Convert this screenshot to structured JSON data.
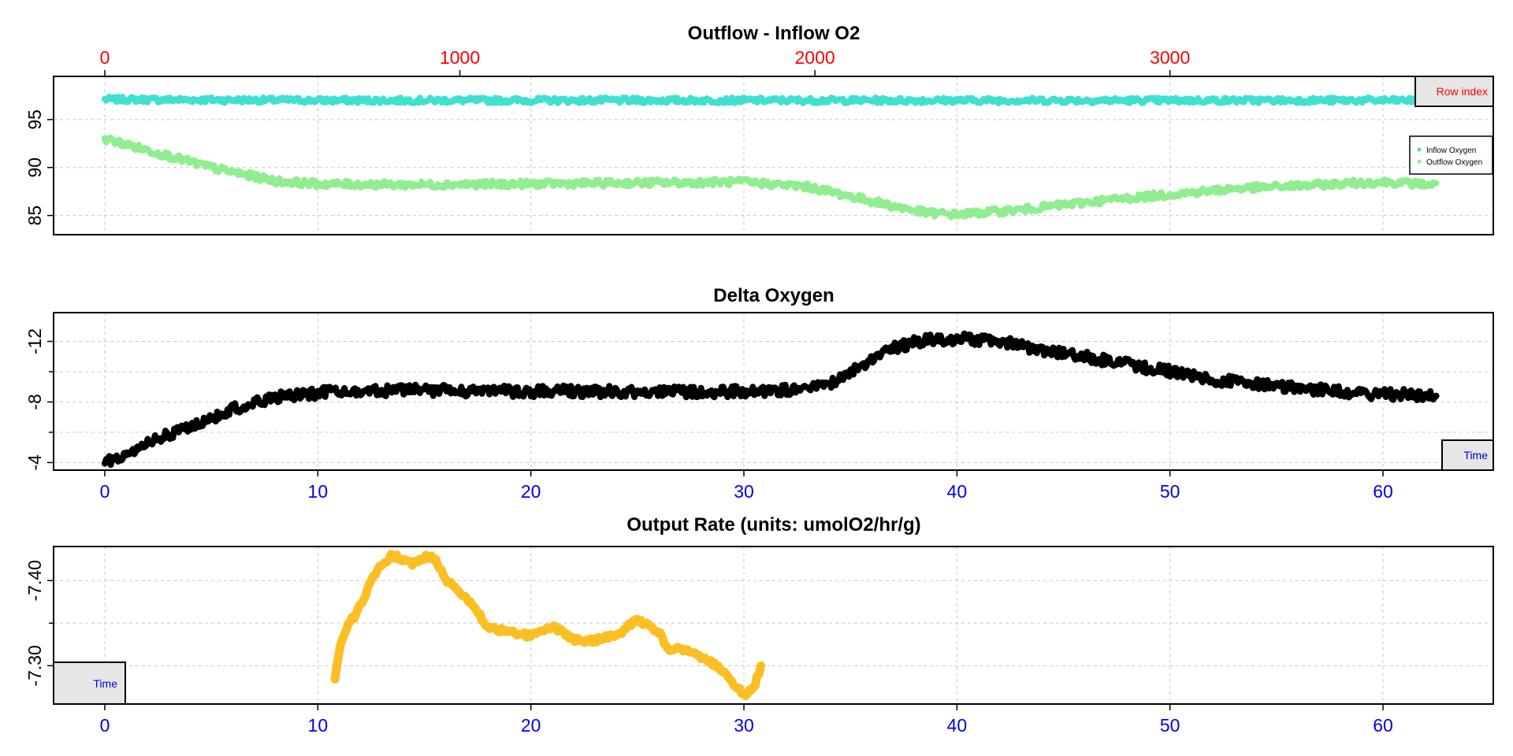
{
  "colors": {
    "inflow": "#40E0D0",
    "outflow": "#90EE90",
    "delta": "#000000",
    "rate": "#FBBF24",
    "row_axis": "#FF0000",
    "time_axis": "#0000EE",
    "box_fill": "#E6E6E6"
  },
  "chart_data": [
    {
      "type": "line",
      "title": "Outflow - Inflow O2",
      "x_top_label_box": "Row index",
      "x_top": {
        "ticks": [
          0,
          1000,
          2000,
          3000
        ],
        "range": [
          0,
          3750
        ]
      },
      "xlim": [
        0,
        62.5
      ],
      "ylim": [
        83,
        99.5
      ],
      "y_ticks": [
        85,
        90,
        95
      ],
      "grid": true,
      "legend_placement": "right",
      "series": [
        {
          "name": "Inflow Oxygen",
          "x": [
            0,
            10,
            20,
            30,
            40,
            50,
            62.5
          ],
          "values": [
            97.1,
            97.0,
            97.0,
            97.0,
            97.0,
            97.0,
            97.0
          ]
        },
        {
          "name": "Outflow Oxygen",
          "x": [
            0,
            2,
            5,
            8,
            10,
            14,
            20,
            30,
            33,
            35,
            37,
            38.5,
            40,
            43,
            47,
            50,
            53,
            57,
            60,
            62.5
          ],
          "values": [
            93.0,
            91.8,
            90.0,
            88.6,
            88.3,
            88.2,
            88.3,
            88.5,
            88.0,
            87.0,
            86.0,
            85.3,
            85.1,
            85.6,
            86.6,
            87.2,
            87.8,
            88.2,
            88.5,
            88.2
          ]
        }
      ]
    },
    {
      "type": "line",
      "title": "Delta Oxygen",
      "x_label_box": "Time",
      "xlim": [
        0,
        62.5
      ],
      "ylim": [
        -3.5,
        -13.9
      ],
      "y_ticks": [
        -12,
        -8,
        -4
      ],
      "x_ticks": [
        0,
        10,
        20,
        30,
        40,
        50,
        60
      ],
      "grid": true,
      "series": [
        {
          "name": "",
          "x": [
            0,
            2,
            4,
            6,
            8,
            10,
            14,
            20,
            25,
            30,
            33,
            34,
            35,
            36,
            37,
            38,
            40,
            42,
            45,
            48,
            50,
            52,
            55,
            58,
            60,
            62.5
          ],
          "values": [
            -4.0,
            -5.3,
            -6.3,
            -7.5,
            -8.3,
            -8.6,
            -8.8,
            -8.7,
            -8.7,
            -8.7,
            -8.8,
            -9.2,
            -10.0,
            -10.8,
            -11.5,
            -12.0,
            -12.2,
            -12.0,
            -11.2,
            -10.5,
            -10.0,
            -9.5,
            -9.0,
            -8.7,
            -8.5,
            -8.5
          ]
        }
      ]
    },
    {
      "type": "line",
      "title": "Output Rate (units: umolO2/hr/g)",
      "x_label_box": "Time",
      "xlim": [
        0,
        62.5
      ],
      "ylim": [
        -7.255,
        -7.44
      ],
      "y_ticks": [
        -7.4,
        -7.3
      ],
      "y_tick_labels": [
        "-7.40",
        "-7.30"
      ],
      "x_ticks": [
        0,
        10,
        20,
        30,
        40,
        50,
        60
      ],
      "grid": true,
      "series": [
        {
          "name": "",
          "x": [
            10.8,
            11.1,
            11.5,
            12.0,
            12.5,
            13.0,
            13.5,
            14.0,
            14.5,
            15.0,
            15.5,
            16.0,
            16.5,
            17.0,
            18.0,
            19.0,
            20.0,
            21.0,
            21.5,
            22.0,
            23.0,
            24.0,
            25.0,
            26.0,
            26.5,
            27.0,
            28.0,
            29.0,
            29.5,
            30.0,
            30.5,
            30.8
          ],
          "values": [
            -7.285,
            -7.33,
            -7.35,
            -7.37,
            -7.4,
            -7.42,
            -7.43,
            -7.425,
            -7.42,
            -7.428,
            -7.425,
            -7.4,
            -7.39,
            -7.38,
            -7.345,
            -7.34,
            -7.335,
            -7.345,
            -7.34,
            -7.33,
            -7.33,
            -7.335,
            -7.355,
            -7.34,
            -7.315,
            -7.32,
            -7.31,
            -7.295,
            -7.28,
            -7.265,
            -7.275,
            -7.3
          ]
        }
      ]
    }
  ],
  "legend": {
    "entries": [
      "Inflow Oxygen",
      "Outflow Oxygen"
    ]
  }
}
